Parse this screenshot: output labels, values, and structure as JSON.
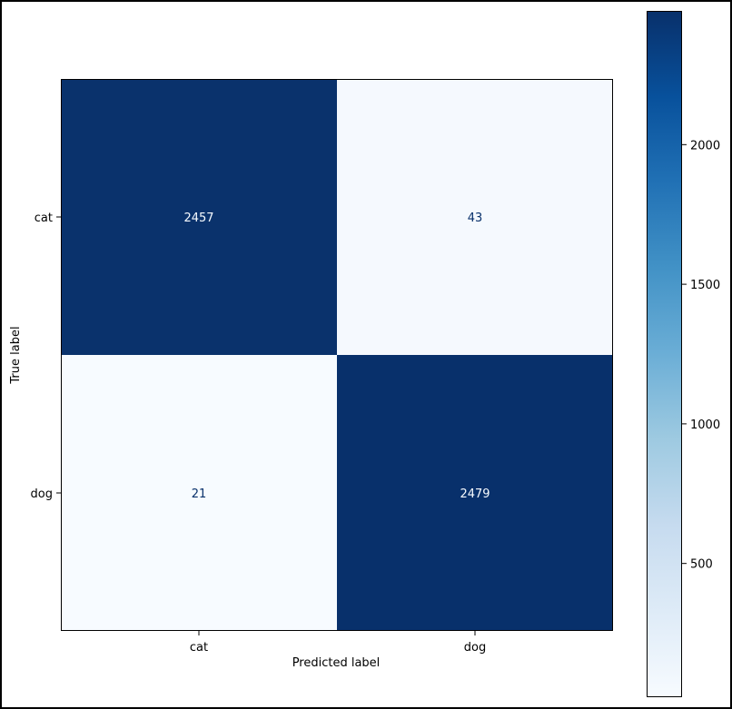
{
  "chart_data": {
    "type": "heatmap",
    "title": "",
    "xlabel": "Predicted label",
    "ylabel": "True label",
    "x_categories": [
      "cat",
      "dog"
    ],
    "y_categories": [
      "cat",
      "dog"
    ],
    "values": [
      [
        2457,
        43
      ],
      [
        21,
        2479
      ]
    ],
    "colormap": "Blues",
    "colorbar": {
      "range": [
        21,
        2479
      ],
      "ticks": [
        500,
        1000,
        1500,
        2000
      ],
      "tick_labels": [
        "500",
        "1000",
        "1500",
        "2000"
      ]
    },
    "grid": false
  },
  "colors": {
    "low": "#f7fbff",
    "high": "#08306b",
    "text_on_dark": "#f7fbff",
    "text_on_light": "#08306b"
  }
}
